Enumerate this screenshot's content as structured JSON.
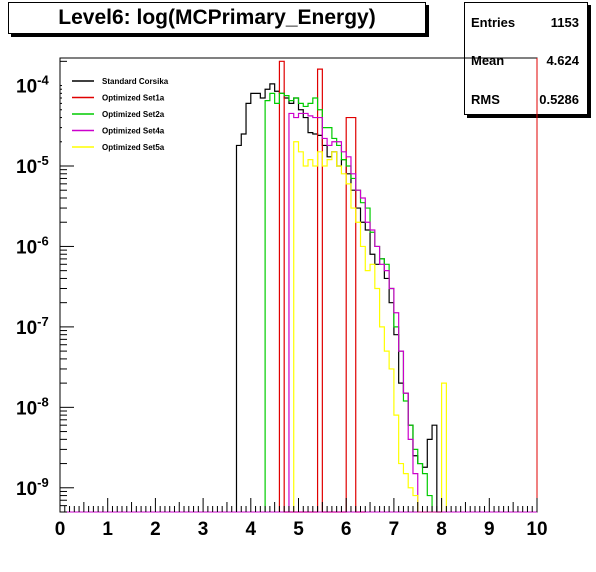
{
  "chart_data": {
    "type": "line",
    "title": "Level6:  log(MCPrimary_Energy)",
    "stats": [
      {
        "label": "Entries",
        "value": "1153"
      },
      {
        "label": "Mean",
        "value": "4.624"
      },
      {
        "label": "RMS",
        "value": "0.5286"
      }
    ],
    "x_axis": {
      "range": [
        0,
        10
      ],
      "ticks": [
        "0",
        "1",
        "2",
        "3",
        "4",
        "5",
        "6",
        "7",
        "8",
        "9",
        "10"
      ],
      "scale": "linear"
    },
    "y_axis": {
      "scale": "log",
      "range": [
        5e-10,
        0.00022
      ],
      "ticks": [
        {
          "base": "10",
          "exp": "-4",
          "value": 0.0001
        },
        {
          "base": "10",
          "exp": "-5",
          "value": 1e-05
        },
        {
          "base": "10",
          "exp": "-6",
          "value": 1e-06
        },
        {
          "base": "10",
          "exp": "-7",
          "value": 1e-07
        },
        {
          "base": "10",
          "exp": "-8",
          "value": 1e-08
        },
        {
          "base": "10",
          "exp": "-9",
          "value": 1e-09
        }
      ]
    },
    "legend_position": "top-left",
    "series": [
      {
        "name": "Standard Corsika",
        "color": "#000000",
        "x": [
          3.7,
          3.8,
          3.9,
          4.0,
          4.1,
          4.2,
          4.3,
          4.4,
          4.5,
          4.6,
          4.7,
          4.8,
          4.9,
          5.0,
          5.1,
          5.2,
          5.3,
          5.4,
          5.5,
          5.6,
          5.7,
          5.8,
          5.9,
          6.0,
          6.1,
          6.2,
          6.3,
          6.4,
          6.5,
          6.6,
          6.7,
          6.8,
          6.9,
          7.0,
          7.1,
          7.2,
          7.3,
          7.4,
          7.5,
          7.6,
          7.7,
          7.8,
          7.9
        ],
        "values": [
          1.8e-05,
          2.5e-05,
          6e-05,
          8e-05,
          8e-05,
          7e-05,
          9e-05,
          0.000105,
          8.5e-05,
          8e-05,
          7e-05,
          6e-05,
          7e-05,
          5e-05,
          4e-05,
          2.6e-05,
          2.5e-05,
          2.4e-05,
          1.8e-05,
          1.3e-05,
          1.5e-05,
          1e-05,
          1.2e-05,
          8e-06,
          5e-06,
          3e-06,
          2e-06,
          1.6e-06,
          8e-07,
          6e-07,
          7e-07,
          4e-07,
          2e-07,
          8e-08,
          2e-08,
          1.5e-08,
          6e-09,
          2.5e-09,
          2e-09,
          1.8e-09,
          4e-09,
          6e-09,
          0
        ]
      },
      {
        "name": "Optimized Set1a",
        "color": "#e00000",
        "x": [
          4.6,
          4.7,
          4.8,
          4.9,
          5.0,
          5.1,
          5.2,
          5.3,
          5.4,
          5.5,
          5.6,
          5.7,
          5.8,
          5.9,
          6.0,
          6.1,
          6.2,
          6.3
        ],
        "values": [
          0.0002,
          0,
          0,
          0,
          0,
          0,
          0,
          0,
          0.00016,
          0,
          0,
          0,
          0,
          0,
          4e-05,
          4e-05,
          0,
          0
        ]
      },
      {
        "name": "Optimized Set2a",
        "color": "#00cc00",
        "x": [
          4.3,
          4.4,
          4.5,
          4.6,
          4.7,
          4.8,
          4.9,
          5.0,
          5.1,
          5.2,
          5.3,
          5.4,
          5.5,
          5.6,
          5.7,
          5.8,
          5.9,
          6.0,
          6.1,
          6.2,
          6.3,
          6.4,
          6.5,
          6.6,
          6.7,
          6.8,
          6.9,
          7.0,
          7.1,
          7.2,
          7.3,
          7.4,
          7.5,
          7.6,
          7.7
        ],
        "values": [
          6.5e-05,
          8e-05,
          6e-05,
          8e-05,
          7.5e-05,
          6.5e-05,
          7e-05,
          6e-05,
          5.5e-05,
          6e-05,
          7e-05,
          5e-05,
          3e-05,
          3e-05,
          2.2e-05,
          1.8e-05,
          1.2e-05,
          1e-05,
          7e-06,
          5e-06,
          3.5e-06,
          3e-06,
          1.5e-06,
          1e-06,
          7e-07,
          6e-07,
          3e-07,
          1e-07,
          5e-08,
          1.2e-08,
          6e-09,
          3e-09,
          2e-09,
          1.5e-09,
          8e-10
        ]
      },
      {
        "name": "Optimized Set4a",
        "color": "#cc00cc",
        "x": [
          4.8,
          4.9,
          5.0,
          5.1,
          5.2,
          5.3,
          5.4,
          5.5,
          5.6,
          5.7,
          5.8,
          5.9,
          6.0,
          6.1,
          6.2,
          6.3,
          6.4,
          6.5,
          6.6,
          6.7,
          6.8,
          6.9,
          7.0,
          7.1,
          7.2,
          7.3,
          7.4
        ],
        "values": [
          4.5e-05,
          4e-05,
          4.5e-05,
          4.5e-05,
          4.2e-05,
          4e-05,
          4e-05,
          2.2e-05,
          1.8e-05,
          2e-05,
          2e-05,
          1.5e-05,
          1.3e-05,
          8e-06,
          5e-06,
          4e-06,
          2e-06,
          1.6e-06,
          1e-06,
          6e-07,
          5e-07,
          3e-07,
          1.5e-07,
          5e-08,
          1.5e-08,
          4e-09,
          1.5e-09
        ]
      },
      {
        "name": "Optimized Set5a",
        "color": "#ffff00",
        "x": [
          4.9,
          5.0,
          5.1,
          5.2,
          5.3,
          5.4,
          5.5,
          5.6,
          5.7,
          5.8,
          5.9,
          6.0,
          6.1,
          6.2,
          6.3,
          6.4,
          6.5,
          6.6,
          6.7,
          6.8,
          6.9,
          7.0,
          7.1,
          7.2,
          7.3,
          7.4,
          7.5,
          7.6,
          7.7,
          7.8,
          7.9,
          8.0
        ],
        "values": [
          2e-05,
          1.5e-05,
          1e-05,
          1.2e-05,
          1e-05,
          1.5e-05,
          1e-05,
          1.2e-05,
          1.5e-05,
          1e-05,
          8e-06,
          6e-06,
          3e-06,
          2e-06,
          1e-06,
          5e-07,
          6e-07,
          3e-07,
          1e-07,
          5e-08,
          3e-08,
          8e-09,
          2e-09,
          1.5e-09,
          1e-09,
          8e-10,
          0,
          0,
          0,
          0,
          0,
          2e-08
        ]
      }
    ]
  }
}
